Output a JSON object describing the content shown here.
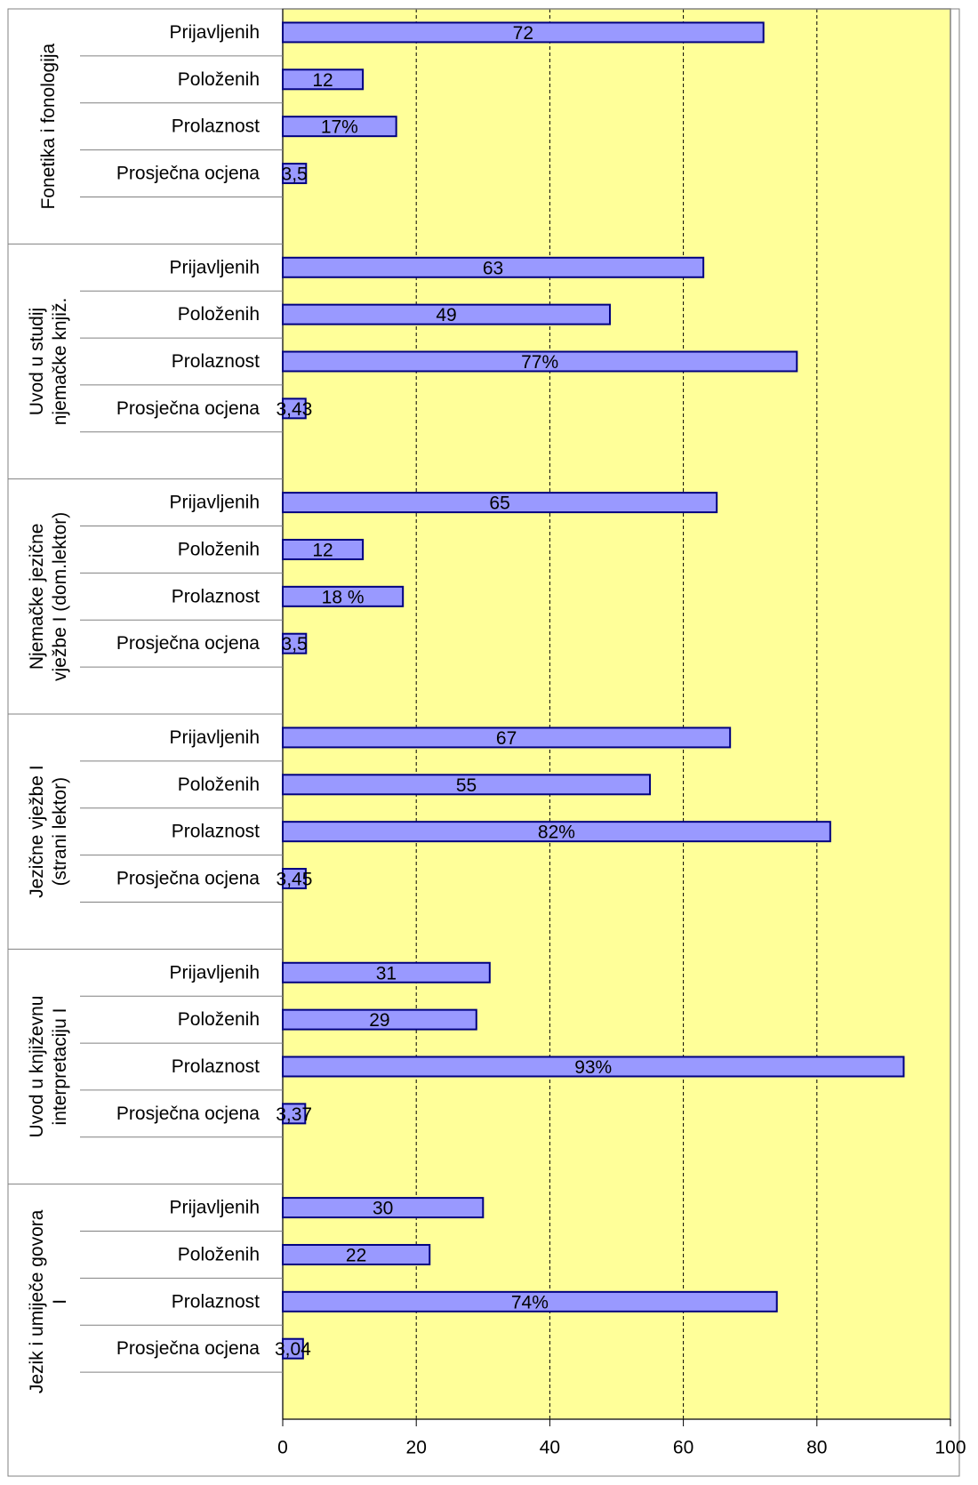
{
  "chart_data": {
    "type": "bar",
    "orientation": "horizontal",
    "grouped_categories": [
      {
        "group": "Fonetika i fonologija",
        "items": [
          {
            "category": "Prijavljenih",
            "value": 72,
            "label": "72"
          },
          {
            "category": "Položenih",
            "value": 12,
            "label": "12"
          },
          {
            "category": "Prolaznost",
            "value": 17,
            "label": "17%"
          },
          {
            "category": "Prosječna ocjena",
            "value": 3.5,
            "label": "3,5"
          }
        ]
      },
      {
        "group": "Uvod u studij njemačke knjiž.",
        "group_lines": [
          "Uvod u studij",
          "njemačke knjiž."
        ],
        "items": [
          {
            "category": "Prijavljenih",
            "value": 63,
            "label": "63"
          },
          {
            "category": "Položenih",
            "value": 49,
            "label": "49"
          },
          {
            "category": "Prolaznost",
            "value": 77,
            "label": "77%"
          },
          {
            "category": "Prosječna ocjena",
            "value": 3.43,
            "label": "3,43"
          }
        ]
      },
      {
        "group": "Njemačke jezične vježbe I (dom.lektor)",
        "group_lines": [
          "Njemačke jezične",
          "vježbe I (dom.lektor)"
        ],
        "items": [
          {
            "category": "Prijavljenih",
            "value": 65,
            "label": "65"
          },
          {
            "category": "Položenih",
            "value": 12,
            "label": "12"
          },
          {
            "category": "Prolaznost",
            "value": 18,
            "label": "18 %"
          },
          {
            "category": "Prosječna ocjena",
            "value": 3.5,
            "label": "3,5"
          }
        ]
      },
      {
        "group": "Jezične vježbe I (strani lektor)",
        "group_lines": [
          "Jezične vježbe I",
          "(strani lektor)"
        ],
        "items": [
          {
            "category": "Prijavljenih",
            "value": 67,
            "label": "67"
          },
          {
            "category": "Položenih",
            "value": 55,
            "label": "55"
          },
          {
            "category": "Prolaznost",
            "value": 82,
            "label": "82%"
          },
          {
            "category": "Prosječna ocjena",
            "value": 3.45,
            "label": "3,45"
          }
        ]
      },
      {
        "group": "Uvod u književnu interpretaciju I",
        "group_lines": [
          "Uvod u književnu",
          "interpretaciju I"
        ],
        "items": [
          {
            "category": "Prijavljenih",
            "value": 31,
            "label": "31"
          },
          {
            "category": "Položenih",
            "value": 29,
            "label": "29"
          },
          {
            "category": "Prolaznost",
            "value": 93,
            "label": "93%"
          },
          {
            "category": "Prosječna ocjena",
            "value": 3.37,
            "label": "3,37"
          }
        ]
      },
      {
        "group": "Jezik i umiječe govora I",
        "group_lines": [
          "Jezik i umiječe govora",
          "I"
        ],
        "items": [
          {
            "category": "Prijavljenih",
            "value": 30,
            "label": "30"
          },
          {
            "category": "Položenih",
            "value": 22,
            "label": "22"
          },
          {
            "category": "Prolaznost",
            "value": 74,
            "label": "74%"
          },
          {
            "category": "Prosječna ocjena",
            "value": 3.04,
            "label": "3,04"
          }
        ]
      }
    ],
    "x_ticks": [
      "0",
      "20",
      "40",
      "60",
      "80",
      "100"
    ],
    "xlim": [
      0,
      100
    ],
    "grid": true,
    "legend": "none",
    "title": "",
    "xlabel": "",
    "ylabel": "",
    "colors": {
      "bar_fill": "#9999FF",
      "bar_stroke": "#000080",
      "plot_background": "#FFFF99",
      "grid": "#000000"
    }
  }
}
